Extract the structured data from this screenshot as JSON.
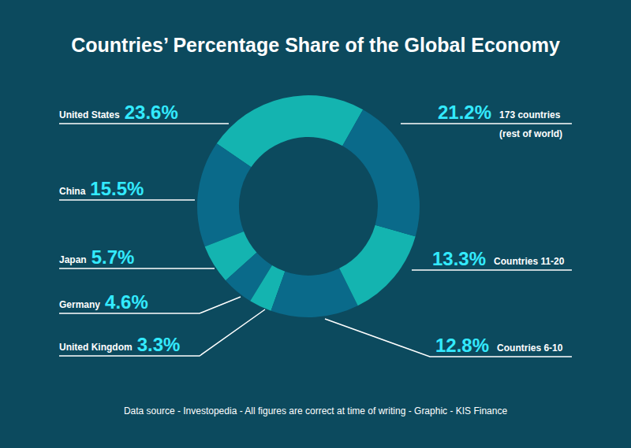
{
  "chart_data": {
    "type": "donut",
    "title": "Countries’ Percentage Share of the Global Economy",
    "categories": [
      "United States",
      "China",
      "Japan",
      "Germany",
      "United Kingdom",
      "Countries 6-10",
      "Countries 11-20",
      "173 countries\n(rest of world)"
    ],
    "values": [
      23.6,
      15.5,
      5.7,
      4.6,
      3.3,
      12.8,
      13.3,
      21.2
    ],
    "value_labels": [
      "23.6%",
      "15.5%",
      "5.7%",
      "4.6%",
      "3.3%",
      "12.8%",
      "13.3%",
      "21.2%"
    ],
    "colors": [
      "#14b4b0",
      "#0a6a8a",
      "#14b4b0",
      "#0a6a8a",
      "#14b4b0",
      "#0a6a8a",
      "#14b4b0",
      "#0a6a8a"
    ],
    "data_labels": true,
    "annotations": [
      "Data source - Investopedia - All figures are correct at time of writing - Graphic - KIS Finance"
    ]
  }
}
